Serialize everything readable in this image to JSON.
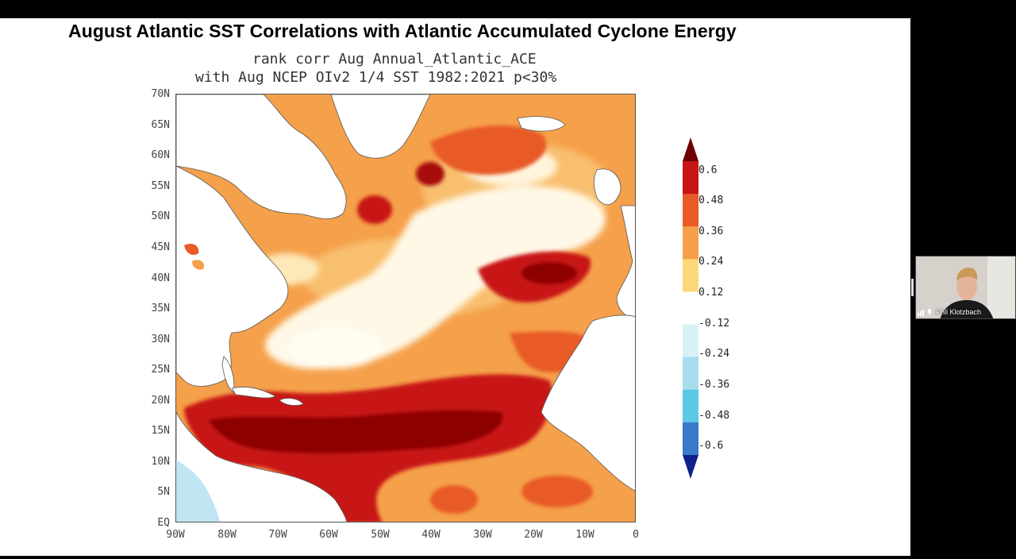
{
  "slide": {
    "title": "August Atlantic SST Correlations with Atlantic Accumulated Cyclone Energy",
    "subtitle_line1": "rank corr Aug  Annual_Atlantic_ACE",
    "subtitle_line2": "with Aug NCEP OIv2 1/4 SST 1982:2021 p<30%"
  },
  "map": {
    "lat_labels": [
      "70N",
      "65N",
      "60N",
      "55N",
      "50N",
      "45N",
      "40N",
      "35N",
      "30N",
      "25N",
      "20N",
      "15N",
      "10N",
      "5N",
      "EQ"
    ],
    "lon_labels": [
      "90W",
      "80W",
      "70W",
      "60W",
      "50W",
      "40W",
      "30W",
      "20W",
      "10W",
      "0"
    ]
  },
  "colorbar": {
    "labels": [
      "0.6",
      "0.48",
      "0.36",
      "0.24",
      "0.12",
      "-0.12",
      "-0.24",
      "-0.36",
      "-0.48",
      "-0.6"
    ],
    "colors": [
      "#6e0000",
      "#c81414",
      "#e85a28",
      "#f5a04a",
      "#fcd87a",
      "#ffffff",
      "#d8f1f6",
      "#a8dcec",
      "#5cc8e6",
      "#3a7ac8",
      "#10208c"
    ]
  },
  "video": {
    "participant_name": "Phil Klotzbach"
  },
  "icons": {
    "participant_mic": "mic-icon",
    "signal": "signal-bars-icon"
  }
}
